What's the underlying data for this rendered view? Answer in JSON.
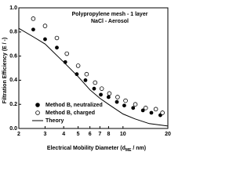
{
  "chart_data": {
    "type": "scatter",
    "title_lines": [
      "Polypropylene mesh - 1 layer",
      "NaCl - Aerosol"
    ],
    "x_label_parts": [
      "Electrical Mobility Diameter (d",
      "ME",
      " / nm)"
    ],
    "y_label": "Filtration Efficiency (E / -)",
    "log_x": true,
    "xlim": [
      2,
      20
    ],
    "xticks": [
      2,
      3,
      4,
      5,
      6,
      7,
      8,
      10,
      20
    ],
    "ylim": [
      0,
      1
    ],
    "yticks": [
      {
        "value": 0,
        "label": "0.0"
      },
      {
        "value": 0.2,
        "label": "0.2"
      },
      {
        "value": 0.4,
        "label": "0.4"
      },
      {
        "value": 0.6,
        "label": "0.6"
      },
      {
        "value": 0.8,
        "label": "0.8"
      },
      {
        "value": 1,
        "label": "1.0"
      }
    ],
    "legend": "lower left",
    "series": [
      {
        "name": "Method B, neutralized",
        "marker": "filled",
        "color": "#000000",
        "x": [
          2.5,
          3,
          3.6,
          4.1,
          4.9,
          5.6,
          6.4,
          7.1,
          8,
          9.1,
          10.2,
          11.7,
          13.6,
          15.5,
          17.8
        ],
        "values": [
          0.82,
          0.74,
          0.67,
          0.55,
          0.45,
          0.4,
          0.33,
          0.28,
          0.26,
          0.22,
          0.19,
          0.17,
          0.15,
          0.13,
          0.11
        ]
      },
      {
        "name": "Method B, charged",
        "marker": "open",
        "color": "#000000",
        "x": [
          2.5,
          3,
          3.6,
          4.2,
          5,
          5.7,
          6.5,
          7.2,
          8.1,
          9.2,
          10.4,
          12.1,
          14.2,
          16.6,
          18.4
        ],
        "values": [
          0.91,
          0.85,
          0.75,
          0.62,
          0.52,
          0.45,
          0.38,
          0.33,
          0.29,
          0.26,
          0.23,
          0.2,
          0.17,
          0.16,
          0.13
        ]
      },
      {
        "name": "Theory",
        "marker": "line",
        "color": "#000000",
        "x": [
          2,
          2.5,
          3,
          4,
          5,
          6,
          7,
          8,
          10,
          12,
          15,
          20
        ],
        "values": [
          0.83,
          0.76,
          0.7,
          0.55,
          0.43,
          0.32,
          0.25,
          0.2,
          0.12,
          0.08,
          0.04,
          0.02
        ]
      }
    ]
  }
}
